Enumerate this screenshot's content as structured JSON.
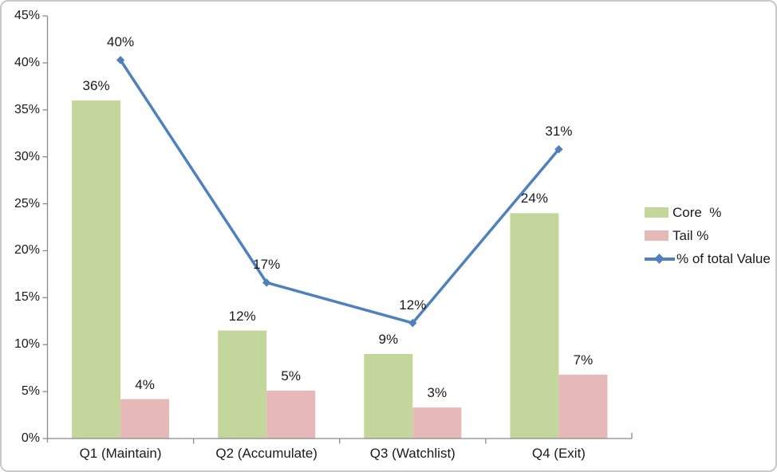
{
  "colors": {
    "core_green": "#c3d69b",
    "tail_pink": "#e6b9b8",
    "line_blue": "#4f81bd",
    "axis_gray": "#8a8a8a",
    "text": "#1a1a1a",
    "chart_border": "#c9c9c9",
    "background": "#ffffff"
  },
  "chart_data": {
    "type": "bar",
    "subtype": "combo-bar-line",
    "categories": [
      "Q1 (Maintain)",
      "Q2 (Accumulate)",
      "Q3 (Watchlist)",
      "Q4 (Exit)"
    ],
    "series": [
      {
        "name": "Core  %",
        "type": "bar",
        "color": "#c3d69b",
        "values": [
          36,
          12,
          9,
          24
        ],
        "labels": [
          "36%",
          "12%",
          "9%",
          "24%"
        ],
        "plotted": [
          36.0,
          11.5,
          9.0,
          24.0
        ]
      },
      {
        "name": "Tail %",
        "type": "bar",
        "color": "#e6b9b8",
        "values": [
          4,
          5,
          3,
          7
        ],
        "labels": [
          "4%",
          "5%",
          "3%",
          "7%"
        ],
        "plotted": [
          4.2,
          5.1,
          3.3,
          6.8
        ]
      },
      {
        "name": "% of total Value",
        "type": "line",
        "color": "#4f81bd",
        "marker": "diamond",
        "values": [
          40,
          17,
          12,
          31
        ],
        "labels": [
          "40%",
          "17%",
          "12%",
          "31%"
        ],
        "plotted": [
          40.3,
          16.6,
          12.3,
          30.8
        ]
      }
    ],
    "y_axis": {
      "min": 0,
      "max": 45,
      "step": 5,
      "tick_labels": [
        "0%",
        "5%",
        "10%",
        "15%",
        "20%",
        "25%",
        "30%",
        "35%",
        "40%",
        "45%"
      ]
    },
    "x_axis": {
      "tick_labels": [
        "Q1 (Maintain)",
        "Q2 (Accumulate)",
        "Q3 (Watchlist)",
        "Q4 (Exit)"
      ]
    },
    "legend": {
      "position": "right",
      "entries": [
        "Core  %",
        "Tail %",
        "% of total Value"
      ]
    },
    "gridlines": false,
    "data_labels": true
  }
}
